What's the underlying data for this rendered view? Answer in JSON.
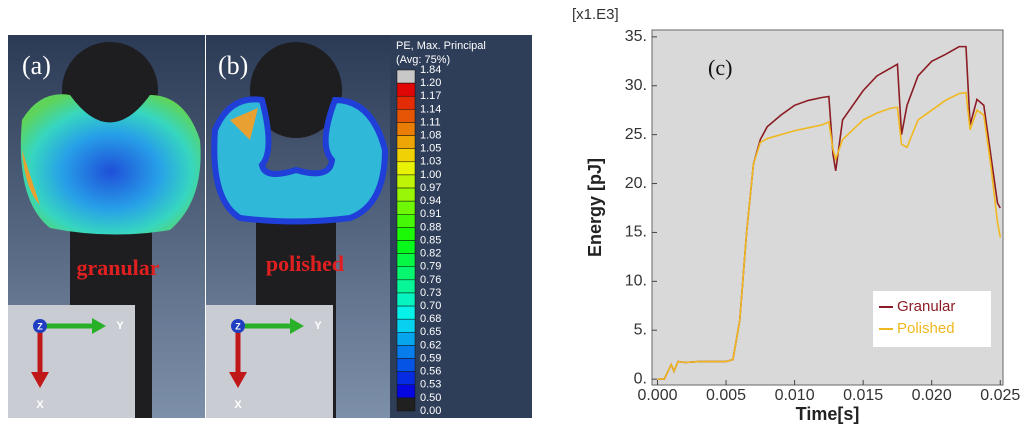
{
  "panels": {
    "a": {
      "label": "(a)",
      "caption": "granular"
    },
    "b": {
      "label": "(b)",
      "caption": "polished"
    },
    "triad": {
      "z": "Z",
      "y": "Y",
      "x": "X"
    }
  },
  "contour_legend": {
    "title": "PE, Max. Principal",
    "subtitle": "(Avg: 75%)",
    "labels": [
      "1.84",
      "1.20",
      "1.17",
      "1.14",
      "1.11",
      "1.08",
      "1.05",
      "1.03",
      "1.00",
      "0.97",
      "0.94",
      "0.91",
      "0.88",
      "0.85",
      "0.82",
      "0.79",
      "0.76",
      "0.73",
      "0.70",
      "0.68",
      "0.65",
      "0.62",
      "0.59",
      "0.56",
      "0.53",
      "0.50",
      "0.00"
    ]
  },
  "chart_data": {
    "type": "line",
    "annotation": "(c)",
    "y_multiplier": "[x1.E3]",
    "x_label": "Time[s]",
    "y_label": "Energy [pJ]",
    "x": [
      0,
      0.0005,
      0.001,
      0.0012,
      0.0015,
      0.002,
      0.003,
      0.005,
      0.0055,
      0.006,
      0.0065,
      0.007,
      0.0075,
      0.008,
      0.009,
      0.01,
      0.011,
      0.012,
      0.0125,
      0.0128,
      0.013,
      0.0135,
      0.015,
      0.016,
      0.017,
      0.0175,
      0.0178,
      0.0182,
      0.019,
      0.02,
      0.021,
      0.022,
      0.0225,
      0.0228,
      0.0233,
      0.0238,
      0.0243,
      0.0248,
      0.025
    ],
    "series": [
      {
        "name": "Granular",
        "color": "#8b1c24",
        "values": [
          0,
          0,
          1.5,
          0.8,
          1.8,
          1.7,
          1.8,
          1.8,
          2,
          6,
          15,
          22,
          24.5,
          25.8,
          27,
          28,
          28.5,
          28.8,
          28.9,
          23,
          21.3,
          26.5,
          29.5,
          31,
          31.8,
          32.2,
          25,
          28,
          31,
          32.5,
          33.2,
          34,
          34,
          26,
          28.6,
          28,
          23,
          18,
          17.5
        ]
      },
      {
        "name": "Polished",
        "color": "#f0b820",
        "values": [
          0,
          0,
          1.5,
          0.8,
          1.8,
          1.7,
          1.8,
          1.8,
          2,
          6,
          15,
          22,
          24.2,
          24.6,
          25,
          25.4,
          25.7,
          26,
          26.3,
          23.5,
          22.5,
          24.5,
          26.5,
          27.2,
          27.7,
          27.8,
          24,
          23.7,
          26.5,
          27.5,
          28.5,
          29.2,
          29.3,
          25.5,
          27.5,
          27,
          22,
          16,
          14.5
        ]
      }
    ],
    "xlim": [
      -0.0004,
      0.0252
    ],
    "ylim": [
      -0.6,
      35.7
    ],
    "xticks": [
      {
        "value": 0,
        "label": "0.000"
      },
      {
        "value": 0.005,
        "label": "0.005"
      },
      {
        "value": 0.01,
        "label": "0.010"
      },
      {
        "value": 0.015,
        "label": "0.015"
      },
      {
        "value": 0.02,
        "label": "0.020"
      },
      {
        "value": 0.025,
        "label": "0.025"
      }
    ],
    "yticks": [
      {
        "value": 0,
        "label": "0."
      },
      {
        "value": 5,
        "label": "5."
      },
      {
        "value": 10,
        "label": "10."
      },
      {
        "value": 15,
        "label": "15."
      },
      {
        "value": 20,
        "label": "20."
      },
      {
        "value": 25,
        "label": "25."
      },
      {
        "value": 30,
        "label": "30."
      },
      {
        "value": 35,
        "label": "35."
      }
    ],
    "legend_position": "lower right",
    "grid": false
  }
}
